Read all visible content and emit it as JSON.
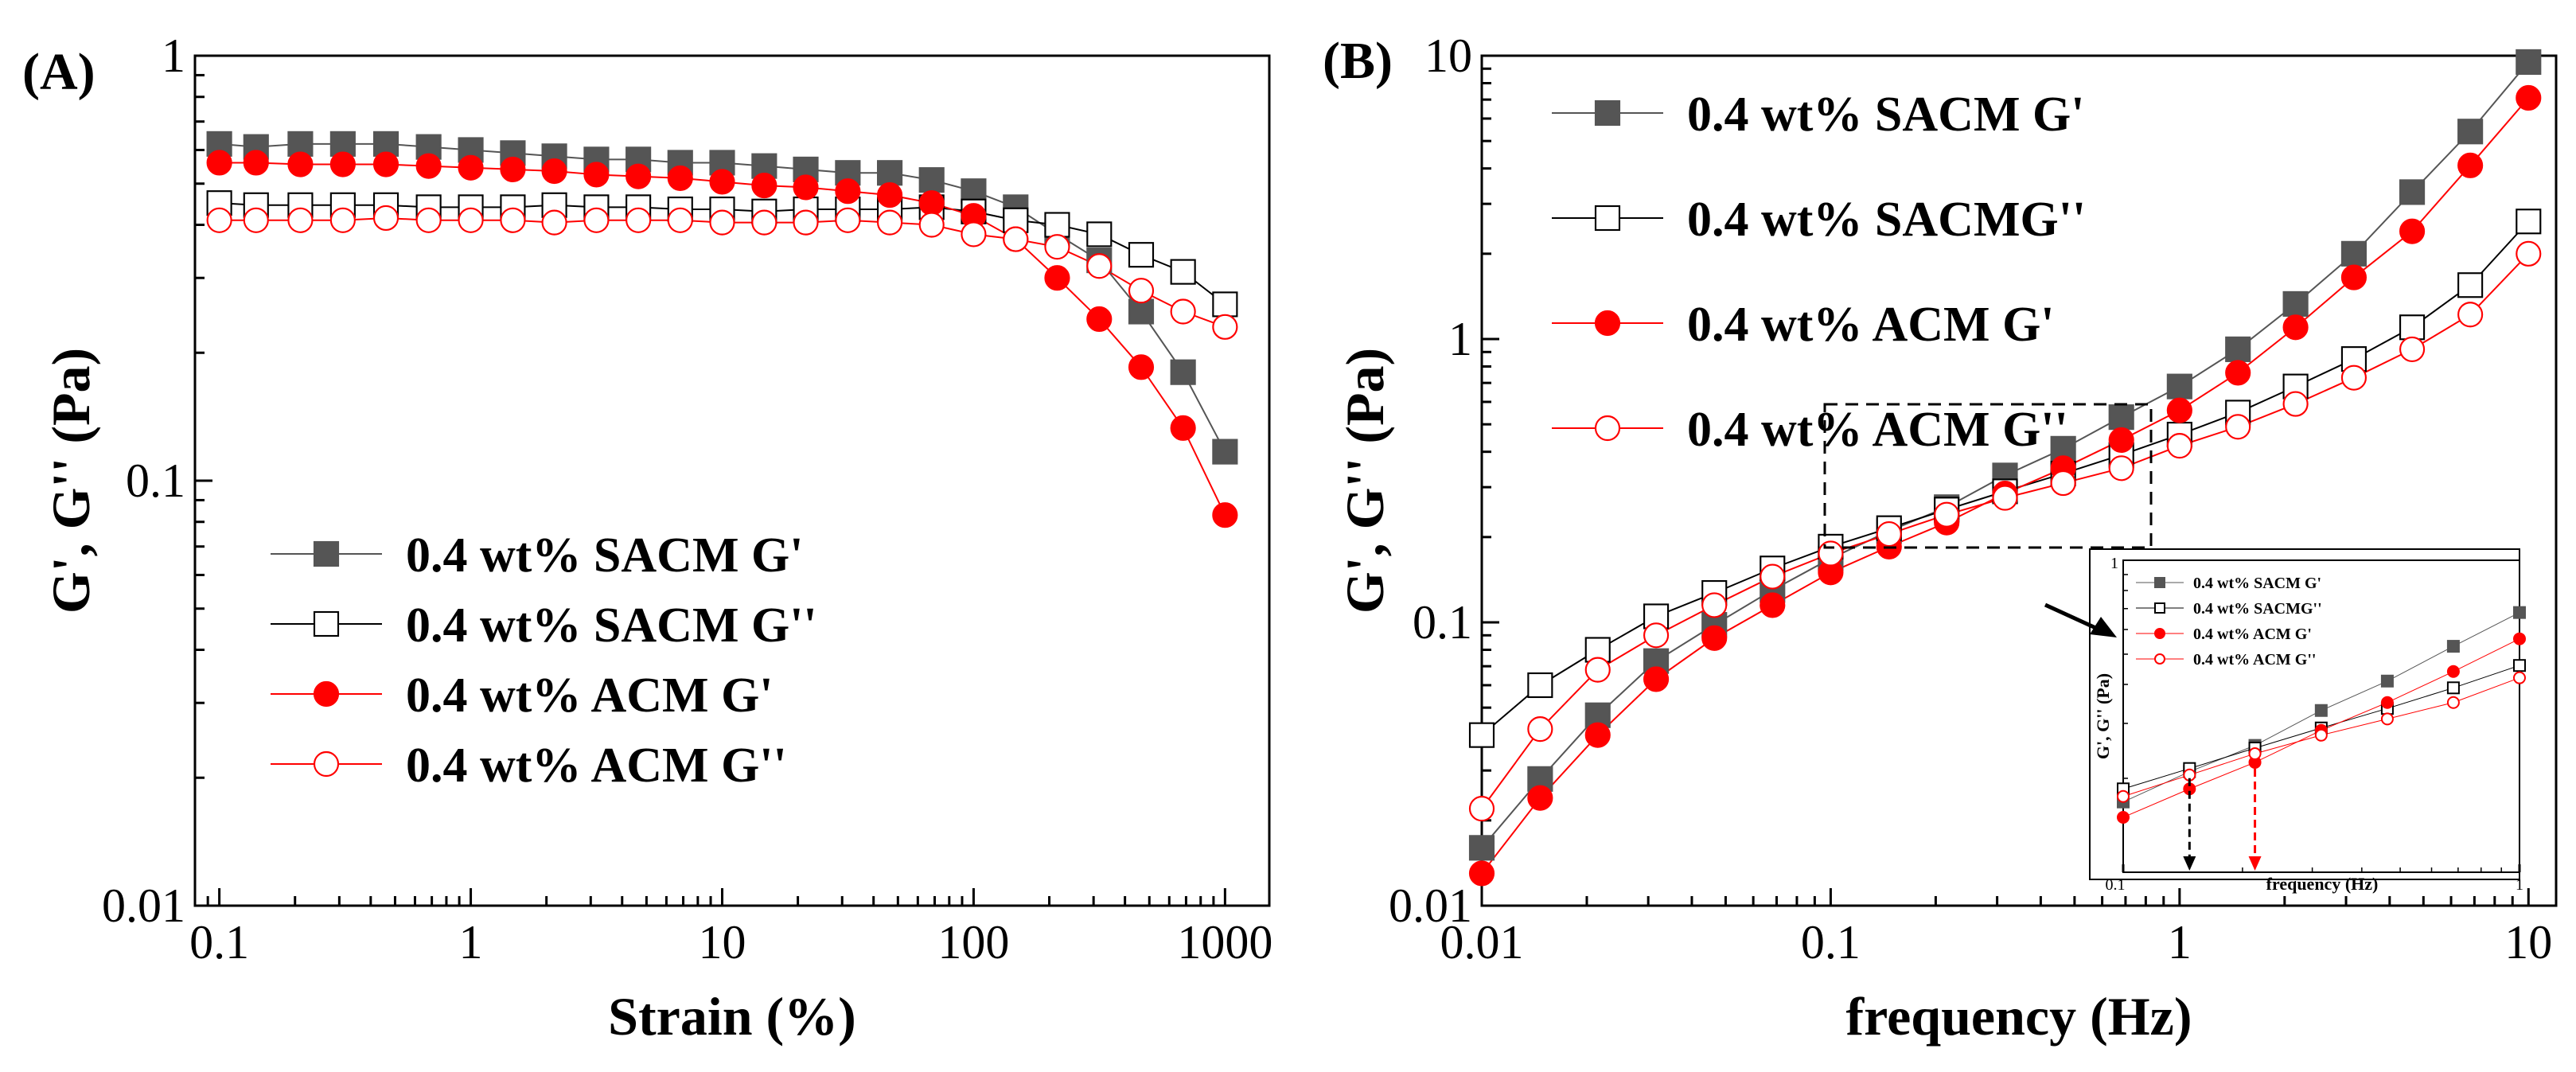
{
  "chart_data": [
    {
      "type": "scatter",
      "panel_label": "(A)",
      "xlabel": "Strain (%)",
      "ylabel": "G', G'' (Pa)",
      "xscale": "log",
      "yscale": "log",
      "xlim": [
        0.08,
        1500
      ],
      "ylim": [
        0.01,
        1
      ],
      "x_tick_labels": [
        "0.1",
        "1",
        "10",
        "100",
        "1000"
      ],
      "x_ticks": [
        0.1,
        1,
        10,
        100,
        1000
      ],
      "y_tick_labels": [
        "0.01",
        "0.1",
        "1"
      ],
      "y_ticks": [
        0.01,
        0.1,
        1
      ],
      "legend_position": "center-left",
      "series": [
        {
          "name": "0.4 wt% SACM G'",
          "marker": "square",
          "filled": true,
          "color": "#555555",
          "x": [
            0.1,
            0.14,
            0.21,
            0.31,
            0.46,
            0.68,
            1.0,
            1.47,
            2.15,
            3.16,
            4.64,
            6.81,
            10,
            14.7,
            21.5,
            31.6,
            46.4,
            68.1,
            100,
            147,
            215,
            316,
            464,
            681,
            1000
          ],
          "y": [
            0.62,
            0.61,
            0.62,
            0.62,
            0.62,
            0.61,
            0.6,
            0.59,
            0.58,
            0.57,
            0.57,
            0.56,
            0.56,
            0.55,
            0.54,
            0.53,
            0.53,
            0.51,
            0.48,
            0.44,
            0.38,
            0.33,
            0.25,
            0.18,
            0.117
          ]
        },
        {
          "name": "0.4 wt% SACM G''",
          "marker": "square",
          "filled": false,
          "color": "#555555",
          "x": [
            0.1,
            0.14,
            0.21,
            0.31,
            0.46,
            0.68,
            1.0,
            1.47,
            2.15,
            3.16,
            4.64,
            6.81,
            10,
            14.7,
            21.5,
            31.6,
            46.4,
            68.1,
            100,
            147,
            215,
            316,
            464,
            681,
            1000
          ],
          "y": [
            0.45,
            0.445,
            0.445,
            0.445,
            0.445,
            0.44,
            0.44,
            0.44,
            0.445,
            0.44,
            0.44,
            0.435,
            0.435,
            0.43,
            0.435,
            0.435,
            0.435,
            0.44,
            0.43,
            0.41,
            0.4,
            0.38,
            0.34,
            0.31,
            0.26
          ]
        },
        {
          "name": "0.4 wt% ACM G'",
          "marker": "circle",
          "filled": true,
          "color": "#ff0000",
          "x": [
            0.1,
            0.14,
            0.21,
            0.31,
            0.46,
            0.68,
            1.0,
            1.47,
            2.15,
            3.16,
            4.64,
            6.81,
            10,
            14.7,
            21.5,
            31.6,
            46.4,
            68.1,
            100,
            147,
            215,
            316,
            464,
            681,
            1000
          ],
          "y": [
            0.56,
            0.56,
            0.555,
            0.555,
            0.555,
            0.55,
            0.545,
            0.54,
            0.535,
            0.525,
            0.52,
            0.515,
            0.505,
            0.495,
            0.49,
            0.48,
            0.47,
            0.45,
            0.42,
            0.37,
            0.3,
            0.24,
            0.185,
            0.133,
            0.083
          ]
        },
        {
          "name": "0.4 wt% ACM G''",
          "marker": "circle",
          "filled": false,
          "color": "#ff0000",
          "x": [
            0.1,
            0.14,
            0.21,
            0.31,
            0.46,
            0.68,
            1.0,
            1.47,
            2.15,
            3.16,
            4.64,
            6.81,
            10,
            14.7,
            21.5,
            31.6,
            46.4,
            68.1,
            100,
            147,
            215,
            316,
            464,
            681,
            1000
          ],
          "y": [
            0.41,
            0.41,
            0.41,
            0.41,
            0.415,
            0.41,
            0.41,
            0.41,
            0.405,
            0.41,
            0.41,
            0.41,
            0.405,
            0.405,
            0.405,
            0.41,
            0.405,
            0.4,
            0.38,
            0.37,
            0.355,
            0.32,
            0.28,
            0.25,
            0.23
          ]
        }
      ]
    },
    {
      "type": "scatter",
      "panel_label": "(B)",
      "xlabel": "frequency (Hz)",
      "ylabel": "G', G'' (Pa)",
      "xscale": "log",
      "yscale": "log",
      "xlim": [
        0.01,
        12
      ],
      "ylim": [
        0.01,
        10
      ],
      "x_tick_labels": [
        "0.01",
        "0.1",
        "1",
        "10"
      ],
      "x_ticks": [
        0.01,
        0.1,
        1,
        10
      ],
      "y_tick_labels": [
        "0.01",
        "0.1",
        "1",
        "10"
      ],
      "y_ticks": [
        0.01,
        0.1,
        1,
        10
      ],
      "legend_position": "top-left",
      "series": [
        {
          "name": "0.4 wt% SACM G'",
          "marker": "square",
          "filled": true,
          "color": "#555555",
          "x": [
            0.01,
            0.0147,
            0.0215,
            0.0316,
            0.0464,
            0.0681,
            0.1,
            0.147,
            0.215,
            0.316,
            0.464,
            0.681,
            1.0,
            1.47,
            2.15,
            3.16,
            4.64,
            6.81,
            10
          ],
          "y": [
            0.016,
            0.028,
            0.047,
            0.073,
            0.098,
            0.13,
            0.168,
            0.21,
            0.255,
            0.33,
            0.41,
            0.53,
            0.68,
            0.92,
            1.33,
            2.0,
            3.3,
            5.4,
            9.5
          ]
        },
        {
          "name": "0.4 wt% SACMG''",
          "marker": "square",
          "filled": false,
          "color": "#555555",
          "x": [
            0.01,
            0.0147,
            0.0215,
            0.0316,
            0.0464,
            0.0681,
            0.1,
            0.147,
            0.215,
            0.316,
            0.464,
            0.681,
            1.0,
            1.47,
            2.15,
            3.16,
            4.64,
            6.81,
            10
          ],
          "y": [
            0.04,
            0.06,
            0.08,
            0.105,
            0.127,
            0.155,
            0.185,
            0.215,
            0.25,
            0.29,
            0.335,
            0.39,
            0.46,
            0.55,
            0.68,
            0.85,
            1.1,
            1.55,
            2.6
          ]
        },
        {
          "name": "0.4 wt% ACM G'",
          "marker": "circle",
          "filled": true,
          "color": "#ff0000",
          "x": [
            0.01,
            0.0147,
            0.0215,
            0.0316,
            0.0464,
            0.0681,
            0.1,
            0.147,
            0.215,
            0.316,
            0.464,
            0.681,
            1.0,
            1.47,
            2.15,
            3.16,
            4.64,
            6.81,
            10
          ],
          "y": [
            0.013,
            0.024,
            0.04,
            0.063,
            0.088,
            0.115,
            0.15,
            0.185,
            0.225,
            0.285,
            0.35,
            0.44,
            0.56,
            0.76,
            1.1,
            1.65,
            2.4,
            4.1,
            7.1
          ]
        },
        {
          "name": "0.4 wt% ACM G''",
          "marker": "circle",
          "filled": false,
          "color": "#ff0000",
          "x": [
            0.01,
            0.0147,
            0.0215,
            0.0316,
            0.0464,
            0.0681,
            0.1,
            0.147,
            0.215,
            0.316,
            0.464,
            0.681,
            1.0,
            1.47,
            2.15,
            3.16,
            4.64,
            6.81,
            10
          ],
          "y": [
            0.022,
            0.042,
            0.068,
            0.09,
            0.115,
            0.145,
            0.175,
            0.205,
            0.24,
            0.275,
            0.31,
            0.35,
            0.42,
            0.49,
            0.59,
            0.73,
            0.92,
            1.22,
            2.0
          ]
        }
      ],
      "inset": {
        "xlabel": "frequency (Hz)",
        "ylabel": "G', G'' (Pa)",
        "xlim": [
          0.1,
          1
        ],
        "ylim": [
          0.1,
          1
        ],
        "x_tick_labels": [
          "0.1",
          "1"
        ],
        "y_tick_labels": [
          "1"
        ],
        "legend_labels": [
          "0.4 wt% SACM G'",
          "0.4 wt% SACMG''",
          "0.4 wt% ACM G'",
          "0.4 wt% ACM G''"
        ],
        "crossover_markers": [
          {
            "x": 0.147,
            "color": "#000000"
          },
          {
            "x": 0.215,
            "color": "#ff0000"
          }
        ]
      }
    }
  ]
}
